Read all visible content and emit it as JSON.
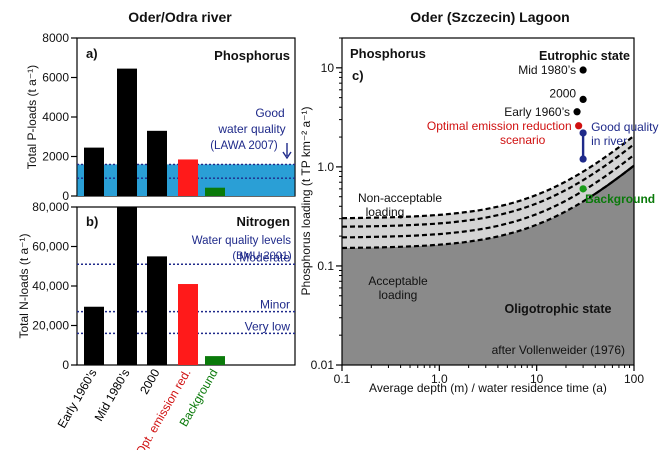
{
  "panel_titles": {
    "left": "Oder/Odra river",
    "right": "Oder (Szczecin) Lagoon"
  },
  "colors": {
    "bar_black": "#000000",
    "bar_red": "#ff1a1a",
    "bar_green": "#0a7a0a",
    "band_blue": "#2a9fd6",
    "ref_line_navy": "#1f2a8a",
    "region_gray": "#8a8a8a",
    "band_lightgray": "#d4d4d4",
    "dot_red": "#d01010",
    "dot_navy": "#1f2a8a",
    "dot_green": "#1a9a1a",
    "text_red": "#d01010",
    "text_navy": "#1f2a8a",
    "text_green": "#0a7a0a"
  },
  "x_categories": [
    {
      "label": "Early 1960’s",
      "color": "#000000"
    },
    {
      "label": "Mid 1980’s",
      "color": "#000000"
    },
    {
      "label": "2000",
      "color": "#000000"
    },
    {
      "label": "Opt. emission red.",
      "color": "#d01010"
    },
    {
      "label": "Background",
      "color": "#0a7a0a"
    }
  ],
  "chart_data": [
    {
      "type": "bar",
      "panel": "a)",
      "title": "Phosphorus",
      "ylabel": "Total P-loads (t a⁻¹)",
      "ylim": [
        0,
        8000
      ],
      "yticks": [
        0,
        2000,
        4000,
        6000,
        8000
      ],
      "yticklabels": [
        "0",
        "2000",
        "4000",
        "6000",
        "8000"
      ],
      "categories": [
        "Early 1960’s",
        "Mid 1980’s",
        "2000",
        "Opt. emission red.",
        "Background"
      ],
      "values": [
        2450,
        6450,
        3300,
        1850,
        420
      ],
      "bar_colors": [
        "#000000",
        "#000000",
        "#000000",
        "#ff1a1a",
        "#0a7a0a"
      ],
      "band": {
        "y_min": 0,
        "y_max": 1600
      },
      "ref_line": 900,
      "annotation": [
        "Good",
        "water quality",
        "(LAWA 2007)"
      ]
    },
    {
      "type": "bar",
      "panel": "b)",
      "title": "Nitrogen",
      "ylabel": "Total N-loads (t a⁻¹)",
      "ylim": [
        0,
        80000
      ],
      "yticks": [
        0,
        20000,
        40000,
        60000,
        80000
      ],
      "yticklabels": [
        "0",
        "20,000",
        "40,000",
        "60,000",
        "80,000"
      ],
      "categories": [
        "Early 1960’s",
        "Mid 1980’s",
        "2000",
        "Opt. emission red.",
        "Background"
      ],
      "values": [
        29500,
        80000,
        55000,
        41000,
        4500
      ],
      "bar_colors": [
        "#000000",
        "#000000",
        "#000000",
        "#ff1a1a",
        "#0a7a0a"
      ],
      "annotation": [
        "Water quality levels",
        "(BMU 2001)"
      ],
      "ref_lines": [
        {
          "value": 51000,
          "label": "Moderate"
        },
        {
          "value": 27000,
          "label": "Minor"
        },
        {
          "value": 16000,
          "label": "Very low"
        }
      ]
    },
    {
      "type": "scatter",
      "panel": "c)",
      "title": "Phosphorus",
      "xlabel": "Average depth (m) / water residence time (a)",
      "ylabel": "Phosphorus loading (t TP km⁻² a⁻¹)",
      "xscale": "log",
      "yscale": "log",
      "xlim": [
        0.1,
        100
      ],
      "ylim": [
        0.01,
        20
      ],
      "xticks": [
        0.1,
        1.0,
        10,
        100
      ],
      "xticklabels": [
        "0.1",
        "1.0",
        "10",
        "100"
      ],
      "yticks": [
        0.01,
        0.1,
        1.0,
        10
      ],
      "yticklabels": [
        "0.01",
        "0.1",
        "1.0",
        "10"
      ],
      "region_labels": {
        "top_right": "Eutrophic state",
        "upper_band": "Non-acceptable loading",
        "lower_band": "Acceptable loading",
        "bottom": "Oligotrophic state",
        "credit": "after Vollenweider (1976)"
      },
      "points": [
        {
          "label": "Mid 1980’s",
          "x": 30,
          "y": 9.5,
          "color": "#000000"
        },
        {
          "label": "2000",
          "x": 30,
          "y": 4.8,
          "color": "#000000"
        },
        {
          "label": "Early 1960’s",
          "x": 26,
          "y": 3.6,
          "color": "#000000"
        },
        {
          "label": "Optimal emission reduction scenario",
          "x": 27,
          "y": 2.6,
          "color": "#d01010"
        },
        {
          "label": "Good quality in river",
          "x": 30,
          "y": 2.2,
          "color": "#1f2a8a"
        },
        {
          "label": "Good quality in river (lower)",
          "x": 30,
          "y": 1.2,
          "color": "#1f2a8a"
        },
        {
          "label": "Background",
          "x": 30,
          "y": 0.6,
          "color": "#1a9a1a"
        }
      ],
      "point_labels": {
        "mid1980": "Mid 1980’s",
        "y2000": "2000",
        "early1960": "Early 1960’s",
        "opt_line1": "Optimal emission reduction",
        "opt_line2": "scenario",
        "good_line1": "Good quality",
        "good_line2": "in river",
        "background": "Background"
      },
      "curves_factors": [
        1.0,
        0.82,
        0.64,
        0.5
      ]
    }
  ]
}
